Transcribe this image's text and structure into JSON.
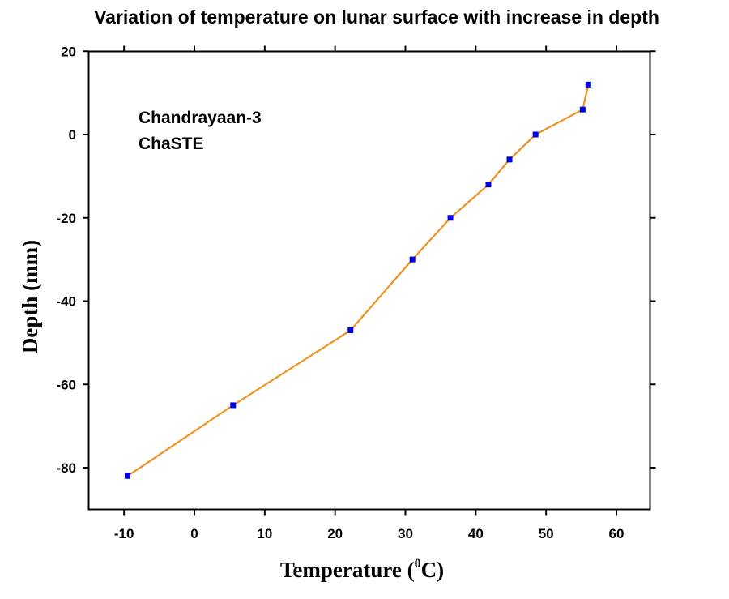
{
  "chart_data": {
    "type": "line",
    "title": "Variation of temperature on lunar surface with increase in depth",
    "xlabel": "Temperature (",
    "xlabel_sup": "0",
    "xlabel_unit": "C)",
    "ylabel": "Depth (mm)",
    "xlim": [
      -15,
      65
    ],
    "ylim": [
      -90,
      20
    ],
    "x_ticks": [
      -10,
      0,
      10,
      20,
      30,
      40,
      50,
      60
    ],
    "y_ticks": [
      20,
      0,
      -20,
      -40,
      -60,
      -80
    ],
    "annotations": [
      "Chandrayaan-3",
      "ChaSTE"
    ],
    "grid": false,
    "series": [
      {
        "line_color": "#f0921e",
        "marker_color": "#0000e6",
        "marker": "square",
        "x": [
          -9.5,
          5.5,
          22.2,
          31.0,
          36.4,
          41.8,
          44.8,
          48.5,
          55.2,
          56.0
        ],
        "y": [
          -82,
          -65,
          -47,
          -30,
          -20,
          -12,
          -6,
          0,
          6,
          12
        ]
      }
    ]
  }
}
